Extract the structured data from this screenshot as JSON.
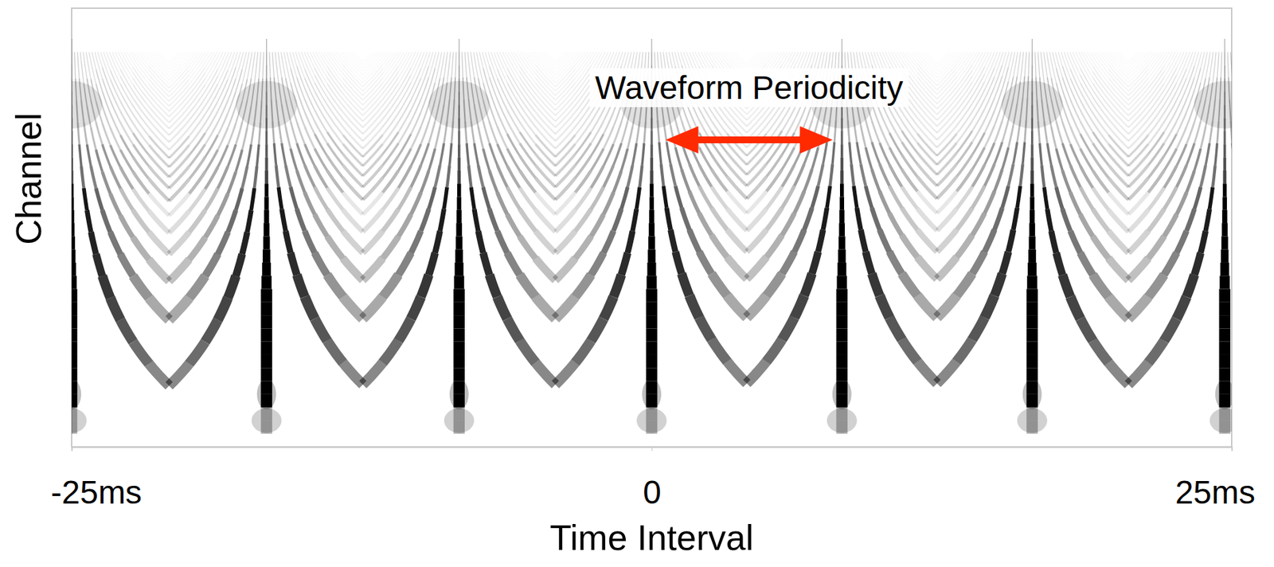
{
  "chart_data": {
    "type": "auditory_image",
    "x_label": "Time Interval",
    "y_label": "Channel",
    "xlim": [
      -25,
      25
    ],
    "xticks": [
      {
        "value": -25,
        "label": "-25ms"
      },
      0,
      {
        "value": 25,
        "label": "25ms"
      }
    ],
    "tick_labels": "x",
    "color": "#000000",
    "peaks": [
      -25,
      -16.6,
      -8.3,
      0,
      8.2,
      16.4,
      24.7
    ],
    "annotations": [
      {
        "text": "Waveform Periodicity",
        "x_start": 0.6,
        "x_end": 7.8,
        "color": "#ff2a00"
      }
    ]
  }
}
